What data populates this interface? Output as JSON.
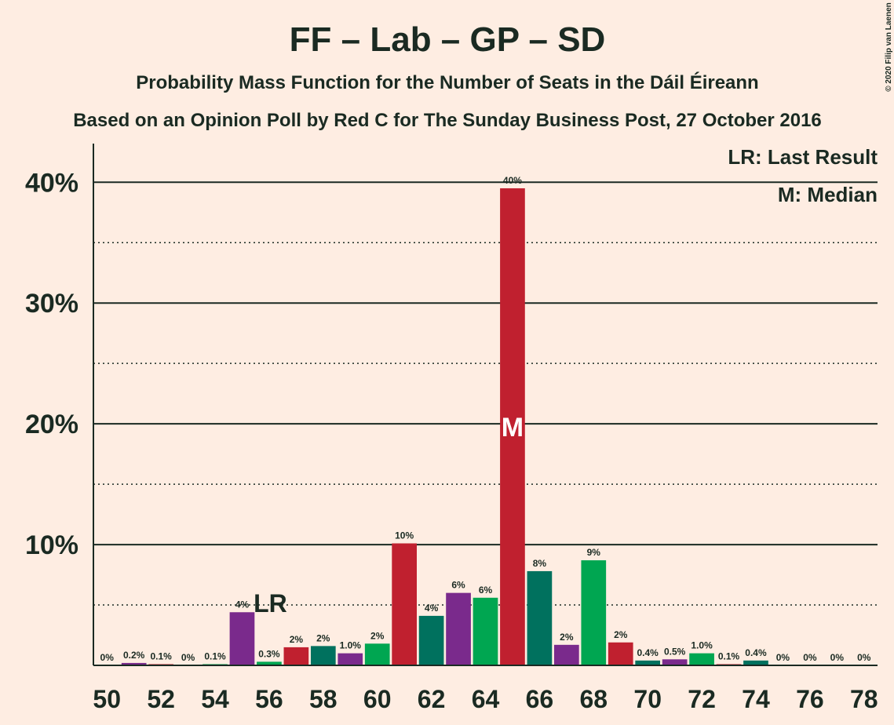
{
  "chart_data": {
    "type": "bar",
    "title": "FF – Lab – GP – SD",
    "subtitle": "Probability Mass Function for the Number of Seats in the Dáil Éireann",
    "subtitle2": "Based on an Opinion Poll by Red C for The Sunday Business Post, 27 October 2016",
    "copyright": "© 2020 Filip van Laenen",
    "x": [
      50,
      51,
      52,
      53,
      54,
      55,
      56,
      57,
      58,
      59,
      60,
      61,
      62,
      63,
      64,
      65,
      66,
      67,
      68,
      69,
      70,
      71,
      72,
      73,
      74,
      75,
      76,
      77,
      78
    ],
    "values": [
      0,
      0.2,
      0.1,
      0,
      0.1,
      4.4,
      0.3,
      1.5,
      1.6,
      1.0,
      1.8,
      10.1,
      4.1,
      6.0,
      5.6,
      39.5,
      7.8,
      1.7,
      8.7,
      1.9,
      0.4,
      0.5,
      1.0,
      0.1,
      0.4,
      0,
      0,
      0,
      0
    ],
    "value_labels": [
      "0%",
      "0.2%",
      "0.1%",
      "0%",
      "0.1%",
      "4%",
      "0.3%",
      "2%",
      "2%",
      "1.0%",
      "2%",
      "10%",
      "4%",
      "6%",
      "6%",
      "40%",
      "8%",
      "2%",
      "9%",
      "2%",
      "0.4%",
      "0.5%",
      "1.0%",
      "0.1%",
      "0.4%",
      "0%",
      "0%",
      "0%",
      "0%"
    ],
    "colors": [
      "#00a651",
      "#7a2a8c",
      "#c0202f",
      "#00715e",
      "#00a651",
      "#7a2a8c",
      "#00a651",
      "#c0202f",
      "#00715e",
      "#7a2a8c",
      "#00a651",
      "#c0202f",
      "#00715e",
      "#7a2a8c",
      "#00a651",
      "#c0202f",
      "#00715e",
      "#7a2a8c",
      "#00a651",
      "#c0202f",
      "#00715e",
      "#7a2a8c",
      "#00a651",
      "#c0202f",
      "#00715e",
      "#7a2a8c",
      "#00a651",
      "#c0202f",
      "#00715e"
    ],
    "xlim": [
      49.5,
      78.5
    ],
    "xticks": [
      50,
      52,
      54,
      56,
      58,
      60,
      62,
      64,
      66,
      68,
      70,
      72,
      74,
      76,
      78
    ],
    "ylim": [
      0,
      43.2
    ],
    "yticks": [
      {
        "value": 10,
        "label": "10%"
      },
      {
        "value": 20,
        "label": "20%"
      },
      {
        "value": 30,
        "label": "30%"
      },
      {
        "value": 40,
        "label": "40%"
      }
    ],
    "minor_yticks": [
      5,
      15,
      25,
      35
    ],
    "last_result": {
      "x": 56,
      "label": "LR"
    },
    "median": {
      "x": 65,
      "label": "M"
    },
    "legend": [
      "LR: Last Result",
      "M: Median"
    ]
  }
}
